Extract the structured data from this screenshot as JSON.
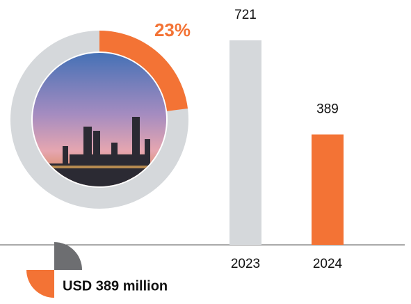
{
  "chart_data": [
    {
      "type": "donut",
      "values": [
        23
      ],
      "value_labels": [
        "23%"
      ],
      "color": "#f37335",
      "track_color": "#d5d8db"
    },
    {
      "type": "bar",
      "categories": [
        "2023",
        "2024"
      ],
      "values": [
        721,
        389
      ],
      "colors": [
        "#d5d8db",
        "#f37335"
      ],
      "annotation": "USD 389 million"
    }
  ]
}
